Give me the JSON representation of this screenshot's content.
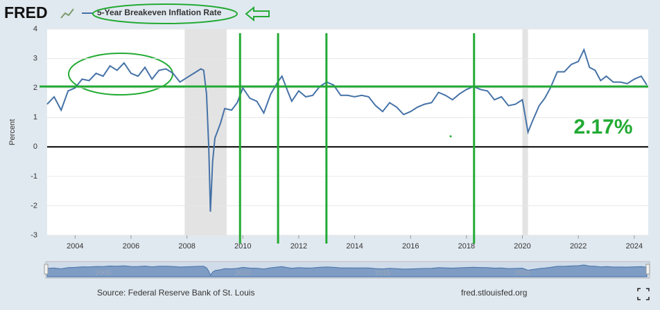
{
  "chart_data": {
    "type": "line",
    "logo": "FRED",
    "ylabel": "Percent",
    "source": "Source: Federal Reserve Bank of St. Louis",
    "site": "fred.stlouisfed.org",
    "xlim": [
      2003,
      2024.5
    ],
    "xticks": [
      2004,
      2006,
      2008,
      2010,
      2012,
      2014,
      2016,
      2018,
      2020,
      2022,
      2024
    ],
    "ylim": [
      -3,
      4
    ],
    "yticks": [
      -3,
      -2,
      -1,
      0,
      1,
      2,
      3,
      4
    ],
    "grid": true,
    "zero_line": 0,
    "recessions": [
      [
        2007.92,
        2009.42
      ],
      [
        2020.0,
        2020.2
      ]
    ],
    "navigator_ticks": [
      2005,
      2010,
      2015,
      2020
    ],
    "series": [
      {
        "name": "5-Year Breakeven Inflation Rate",
        "color": "#4572a7",
        "x": [
          2003.0,
          2003.25,
          2003.5,
          2003.75,
          2004.0,
          2004.25,
          2004.5,
          2004.75,
          2005.0,
          2005.25,
          2005.5,
          2005.75,
          2006.0,
          2006.25,
          2006.5,
          2006.75,
          2007.0,
          2007.25,
          2007.5,
          2007.75,
          2008.0,
          2008.25,
          2008.5,
          2008.6,
          2008.7,
          2008.78,
          2008.84,
          2008.92,
          2009.0,
          2009.2,
          2009.35,
          2009.6,
          2009.8,
          2010.0,
          2010.25,
          2010.5,
          2010.75,
          2011.0,
          2011.25,
          2011.4,
          2011.6,
          2011.75,
          2012.0,
          2012.25,
          2012.5,
          2012.75,
          2013.0,
          2013.25,
          2013.5,
          2013.75,
          2014.0,
          2014.25,
          2014.5,
          2014.75,
          2015.0,
          2015.25,
          2015.5,
          2015.75,
          2016.0,
          2016.25,
          2016.5,
          2016.75,
          2017.0,
          2017.25,
          2017.5,
          2017.75,
          2018.0,
          2018.25,
          2018.5,
          2018.75,
          2019.0,
          2019.25,
          2019.5,
          2019.75,
          2020.0,
          2020.2,
          2020.35,
          2020.6,
          2020.8,
          2021.0,
          2021.25,
          2021.5,
          2021.75,
          2022.0,
          2022.2,
          2022.4,
          2022.6,
          2022.8,
          2023.0,
          2023.25,
          2023.5,
          2023.75,
          2024.0,
          2024.25,
          2024.45
        ],
        "values": [
          1.45,
          1.7,
          1.25,
          1.9,
          2.0,
          2.3,
          2.25,
          2.5,
          2.4,
          2.75,
          2.6,
          2.85,
          2.5,
          2.4,
          2.7,
          2.3,
          2.6,
          2.65,
          2.5,
          2.2,
          2.35,
          2.5,
          2.65,
          2.6,
          1.8,
          0.0,
          -2.2,
          -0.5,
          0.3,
          0.8,
          1.3,
          1.25,
          1.5,
          2.0,
          1.65,
          1.55,
          1.15,
          1.8,
          2.2,
          2.4,
          1.9,
          1.55,
          1.9,
          1.7,
          1.75,
          2.05,
          2.2,
          2.1,
          1.75,
          1.75,
          1.7,
          1.75,
          1.7,
          1.4,
          1.2,
          1.5,
          1.35,
          1.1,
          1.2,
          1.35,
          1.45,
          1.5,
          1.85,
          1.75,
          1.6,
          1.8,
          1.95,
          2.05,
          1.95,
          1.9,
          1.6,
          1.7,
          1.4,
          1.45,
          1.6,
          0.5,
          0.85,
          1.4,
          1.65,
          2.0,
          2.55,
          2.55,
          2.8,
          2.9,
          3.3,
          2.7,
          2.6,
          2.25,
          2.4,
          2.2,
          2.2,
          2.15,
          2.3,
          2.4,
          2.1
        ]
      }
    ],
    "annotations": {
      "vlines": [
        2009.9,
        2011.26,
        2012.99,
        2018.27
      ],
      "hline": 2.05,
      "label": "2.17%"
    }
  }
}
